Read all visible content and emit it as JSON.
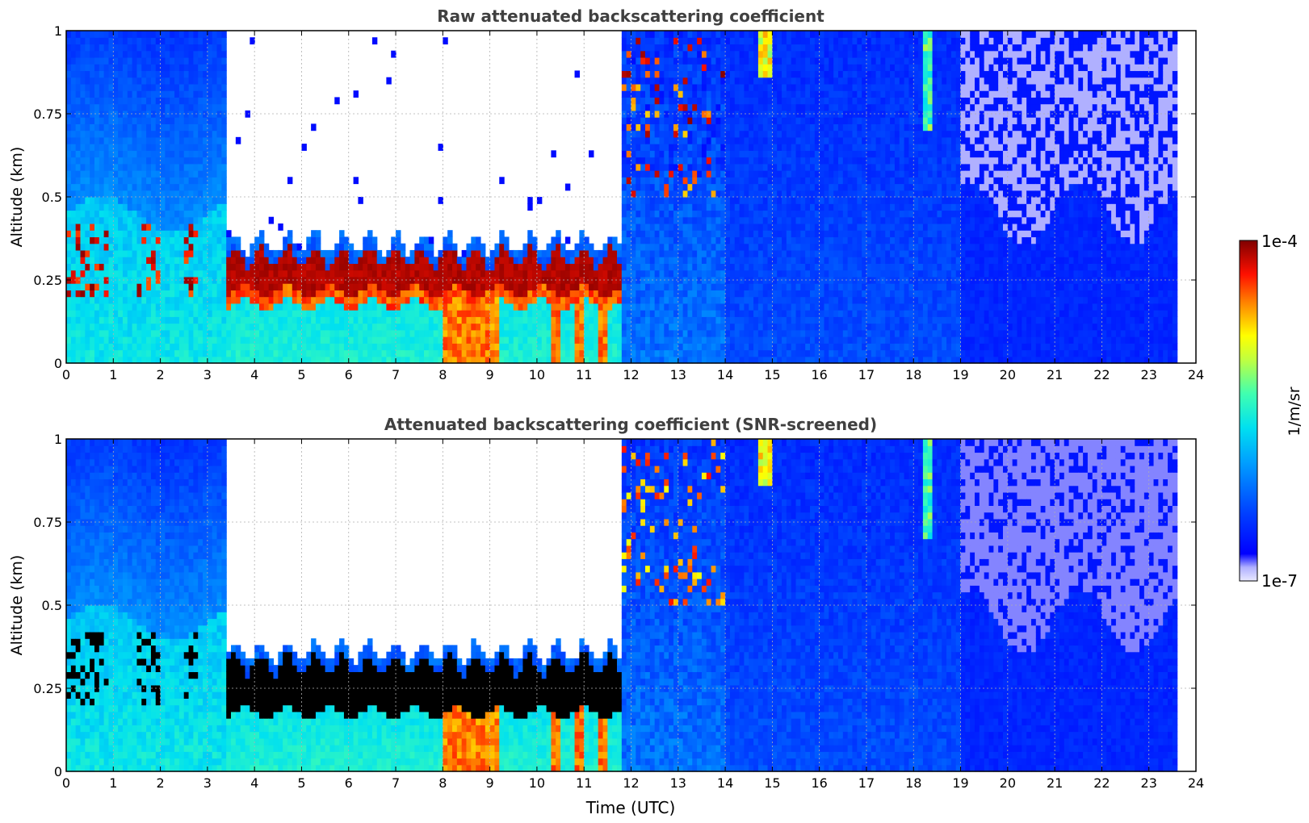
{
  "chart_data": [
    {
      "type": "heatmap",
      "title": "Raw attenuated backscattering coefficient",
      "xlabel": "",
      "ylabel": "Altitude (km)",
      "xlim": [
        0,
        24
      ],
      "ylim": [
        0,
        1
      ],
      "x_ticks": [
        "0",
        "1",
        "2",
        "3",
        "4",
        "5",
        "6",
        "7",
        "8",
        "9",
        "10",
        "11",
        "12",
        "13",
        "14",
        "15",
        "16",
        "17",
        "18",
        "19",
        "20",
        "21",
        "22",
        "23",
        "24"
      ],
      "y_ticks": [
        "0",
        "0.25",
        "0.5",
        "0.75",
        "1"
      ],
      "grid": true,
      "data_end_time": 23.65,
      "time_segments": [
        {
          "start": 0.0,
          "end": 3.4,
          "regime": "clear-boundary-layer",
          "layer_top_km": 0.5
        },
        {
          "start": 3.4,
          "end": 11.8,
          "regime": "fog-cloud",
          "cloud_base_km": 0.18,
          "cloud_top_km": 0.32,
          "above": "no-signal"
        },
        {
          "start": 8.0,
          "end": 9.2,
          "regime": "precipitation-below-cloud"
        },
        {
          "start": 11.8,
          "end": 14.0,
          "regime": "broken-cloud-noisy",
          "cloud_altitude_km": [
            0.5,
            1.0
          ]
        },
        {
          "start": 14.0,
          "end": 19.0,
          "regime": "low-signal"
        },
        {
          "start": 19.0,
          "end": 23.65,
          "regime": "low-signal-noisy-aloft"
        }
      ]
    },
    {
      "type": "heatmap",
      "title": "Attenuated backscattering coefficient (SNR-screened)",
      "xlabel": "Time (UTC)",
      "ylabel": "Altitude (km)",
      "xlim": [
        0,
        24
      ],
      "ylim": [
        0,
        1
      ],
      "x_ticks": [
        "0",
        "1",
        "2",
        "3",
        "4",
        "5",
        "6",
        "7",
        "8",
        "9",
        "10",
        "11",
        "12",
        "13",
        "14",
        "15",
        "16",
        "17",
        "18",
        "19",
        "20",
        "21",
        "22",
        "23",
        "24"
      ],
      "y_ticks": [
        "0",
        "0.25",
        "0.5",
        "0.75",
        "1"
      ],
      "grid": true,
      "data_end_time": 23.65,
      "screened_color": "#000000"
    }
  ],
  "colorbar": {
    "max_label": "1e-4",
    "min_label": "1e-7",
    "label": "1/m/sr",
    "colormap": "jet",
    "min_color": "#e8e8ff",
    "max_color": "#800000"
  }
}
